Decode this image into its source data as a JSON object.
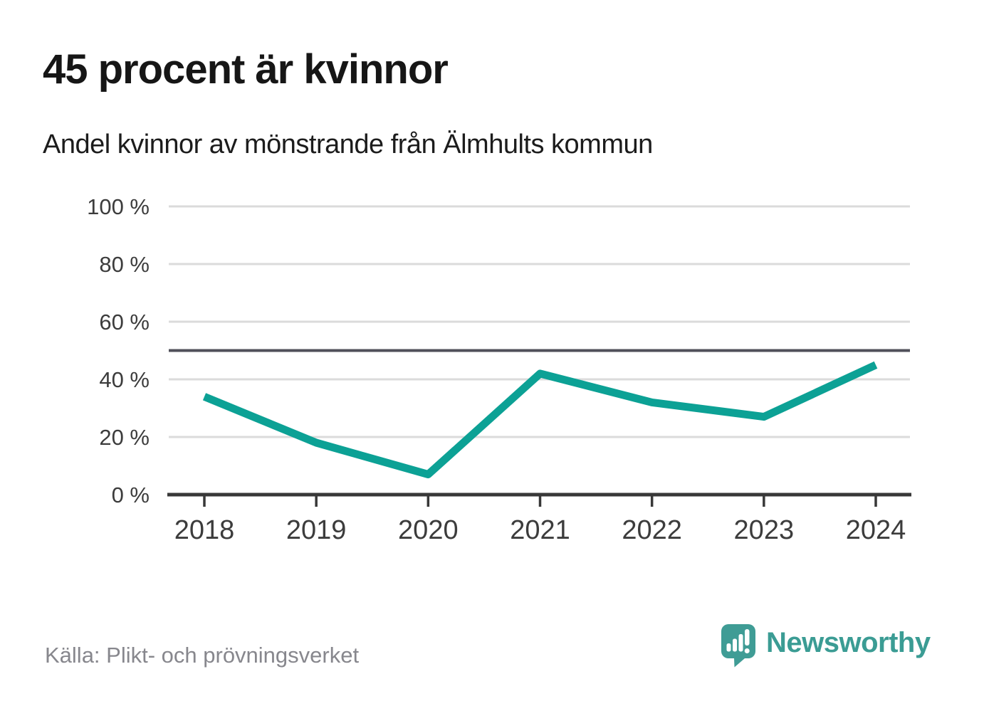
{
  "chart_data": {
    "type": "line",
    "title": "45 procent är kvinnor",
    "subtitle": "Andel kvinnor av mönstrande från Älmhults kommun",
    "x": [
      "2018",
      "2019",
      "2020",
      "2021",
      "2022",
      "2023",
      "2024"
    ],
    "values": [
      34,
      18,
      7,
      42,
      32,
      27,
      45
    ],
    "unit": "%",
    "ylim": [
      0,
      100
    ],
    "yticks": [
      0,
      20,
      40,
      60,
      80,
      100
    ],
    "ytick_suffix": " %",
    "xlabel": "",
    "ylabel": "",
    "reference_line_y": 50,
    "grid": true,
    "legend": false,
    "source": "Källa: Plikt- och prövningsverket"
  },
  "footer": {
    "brand": "Newsworthy",
    "logo_icon": "speech-bubble-bar-chart-exclamation"
  },
  "colors": {
    "line": "#0ca195",
    "grid": "#dbdbdb",
    "reference_line": "#50505a",
    "axis": "#383838",
    "tick_label": "#3c3c3c",
    "title_text": "#161616",
    "source_text": "#87878d",
    "brand_teal": "#3b9c94",
    "background": "#ffffff"
  }
}
